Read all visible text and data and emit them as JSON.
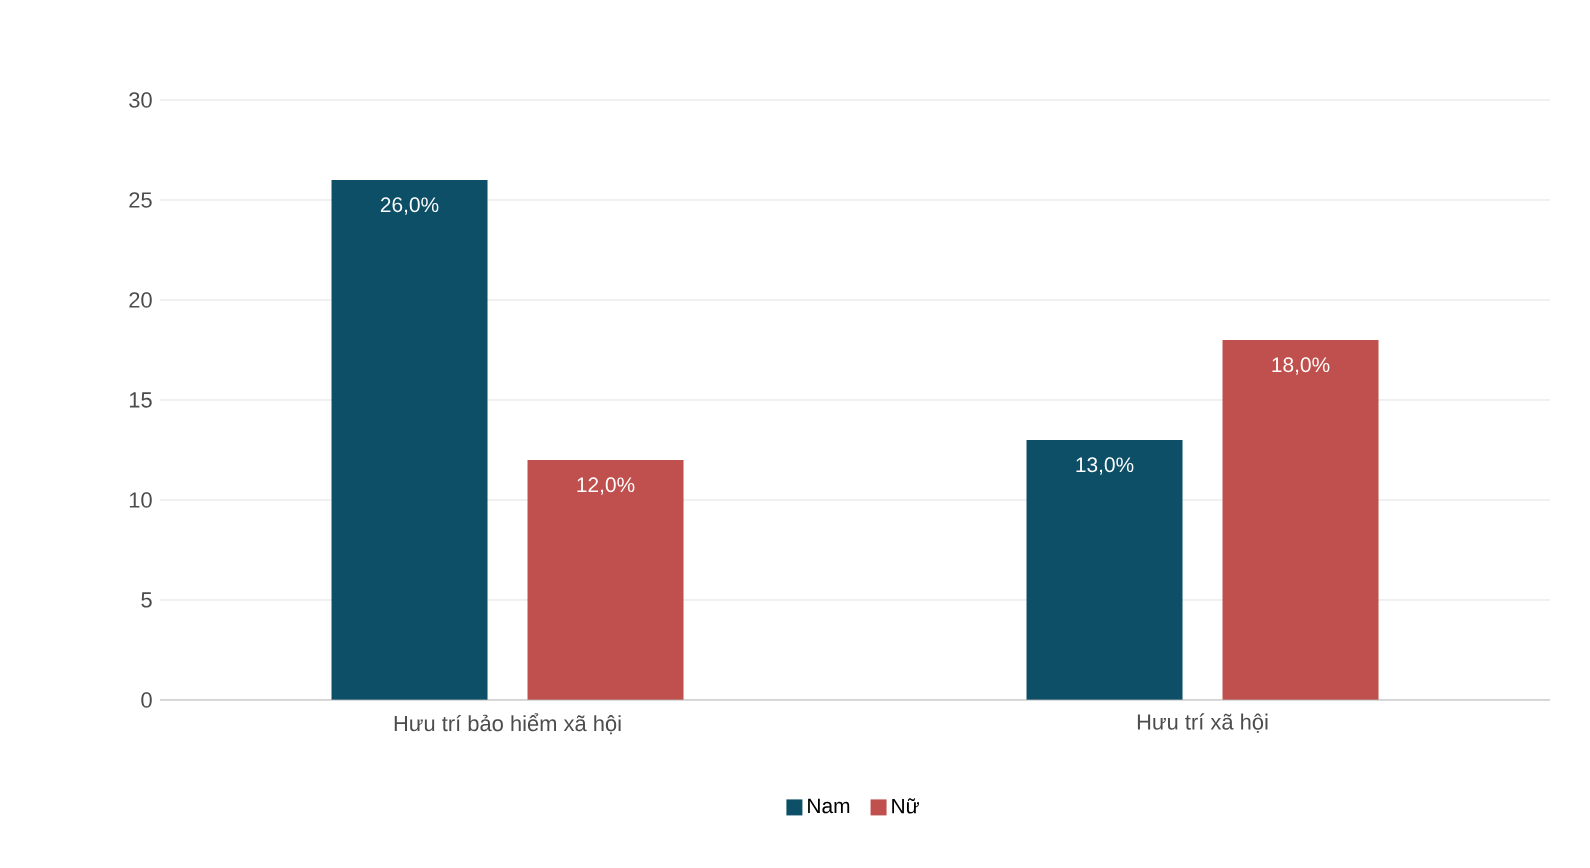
{
  "chart_data": {
    "type": "bar",
    "categories": [
      "Hưu trí bảo hiểm xã hội",
      "Hưu trí xã hội"
    ],
    "series": [
      {
        "name": "Nam",
        "color": "#0e4f68",
        "values": [
          26,
          13
        ],
        "value_labels": [
          "26,0%",
          "13,0%"
        ]
      },
      {
        "name": "Nữ",
        "color": "#c0504d",
        "values": [
          12,
          18
        ],
        "value_labels": [
          "12,0%",
          "18,0%"
        ]
      }
    ],
    "ylim": [
      0,
      30
    ],
    "yticks": [
      0,
      5,
      10,
      15,
      20,
      25,
      30
    ],
    "grid": "y",
    "legend": "bottom"
  }
}
